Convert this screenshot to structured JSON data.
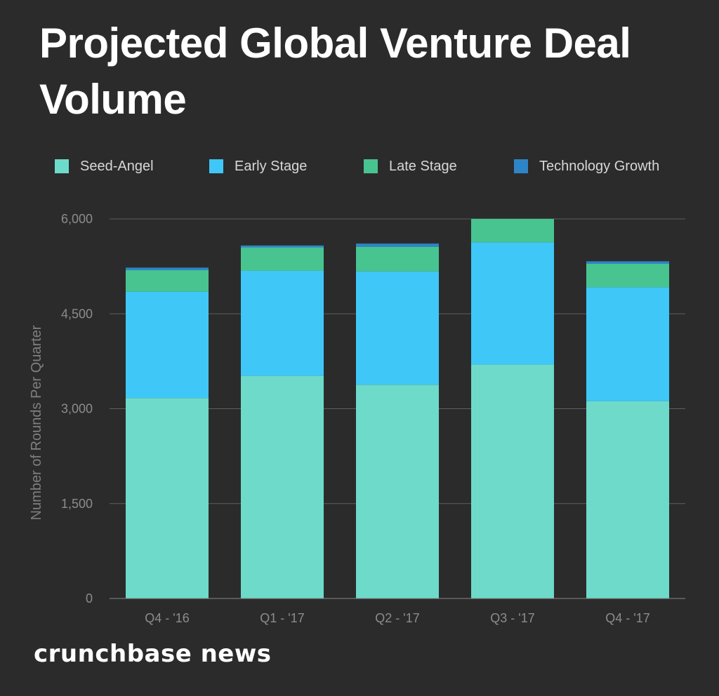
{
  "colors": {
    "background": "#2b2b2b",
    "grid": "#5e5e5e",
    "seed_angel": "#6ddaca",
    "early_stage": "#3fc7f7",
    "late_stage": "#48c491",
    "technology_growth": "#2d85c7"
  },
  "chart_data": {
    "type": "bar",
    "stacked": true,
    "title": "Projected Global Venture Deal Volume",
    "xlabel": "",
    "ylabel": "Number of Rounds Per Quarter",
    "ylim": [
      0,
      6000
    ],
    "yticks": [
      0,
      1500,
      3000,
      4500,
      6000
    ],
    "ytick_labels": [
      "0",
      "1,500",
      "3,000",
      "4,500",
      "6,000"
    ],
    "grid": true,
    "legend_position": "top",
    "categories": [
      "Q4 - '16",
      "Q1 - '17",
      "Q2 - '17",
      "Q3 - '17",
      "Q4 - '17"
    ],
    "series": [
      {
        "name": "Seed-Angel",
        "color": "#6ddaca",
        "values": [
          3170,
          3520,
          3380,
          3700,
          3120
        ]
      },
      {
        "name": "Early Stage",
        "color": "#3fc7f7",
        "values": [
          1680,
          1660,
          1790,
          1930,
          1800
        ]
      },
      {
        "name": "Late Stage",
        "color": "#48c491",
        "values": [
          340,
          370,
          390,
          370,
          370
        ]
      },
      {
        "name": "Technology Growth",
        "color": "#2d85c7",
        "values": [
          40,
          30,
          50,
          0,
          40
        ]
      }
    ]
  },
  "footer": {
    "brand": "crunchbase news"
  }
}
